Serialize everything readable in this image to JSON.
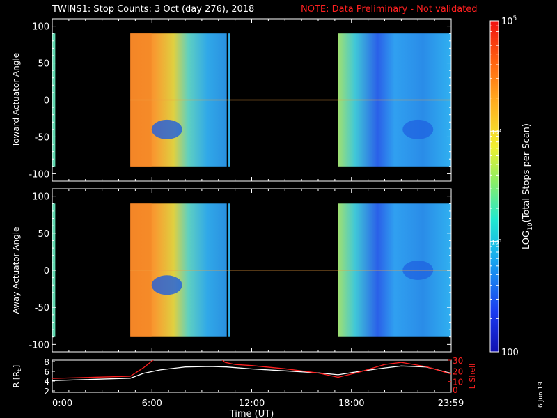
{
  "title": "TWINS1: Stop Counts:  3 Oct (day 276), 2018",
  "note": "NOTE: Data Preliminary - Not validated",
  "date_stamp": "6 Jun 19",
  "colors": {
    "background": "#000000",
    "note": "#ff2020",
    "axes": "#ffffff",
    "r_line": "#ffffff",
    "l_line": "#ff2020"
  },
  "chart_data": [
    {
      "type": "heatmap",
      "ylabel": "Toward Actuator Angle",
      "ylim": [
        -110,
        110
      ],
      "yticks": [
        -100,
        -50,
        0,
        50,
        100
      ],
      "xlim": [
        0,
        24
      ],
      "data_intervals_hours": [
        [
          0.0,
          0.1
        ],
        [
          4.7,
          10.5
        ],
        [
          10.6,
          10.7
        ],
        [
          17.2,
          24.0
        ]
      ],
      "angle_range": [
        -90,
        90
      ]
    },
    {
      "type": "heatmap",
      "ylabel": "Away Actuator Angle",
      "ylim": [
        -110,
        110
      ],
      "yticks": [
        -100,
        -50,
        0,
        50,
        100
      ],
      "xlim": [
        0,
        24
      ],
      "data_intervals_hours": [
        [
          0.0,
          0.1
        ],
        [
          4.7,
          10.5
        ],
        [
          10.6,
          10.7
        ],
        [
          17.2,
          24.0
        ]
      ],
      "angle_range": [
        -90,
        90
      ]
    },
    {
      "type": "line",
      "xlabel": "Time (UT)",
      "xticks": [
        "0:00",
        "6:00",
        "12:00",
        "18:00",
        "23:59"
      ],
      "xtick_hours": [
        0,
        6,
        12,
        18,
        23.98
      ],
      "ylabel_left": "R [R",
      "ylabel_left_sub": "E",
      "ylabel_left_end": "]",
      "ylim_left": [
        2,
        8
      ],
      "yticks_left": [
        "2",
        "4",
        "6",
        "8"
      ],
      "ylabel_right": "L Shell",
      "ylim_right": [
        0,
        30
      ],
      "yticks_right": [
        "10",
        "20",
        "30"
      ],
      "series": [
        {
          "name": "R",
          "axis": "left",
          "x": [
            0,
            4.7,
            5.5,
            6.5,
            8,
            9.5,
            10.5,
            12,
            14,
            16,
            17.2,
            18.5,
            20,
            21,
            22.5,
            24
          ],
          "y": [
            4.1,
            4.6,
            5.6,
            6.3,
            6.9,
            7.0,
            6.9,
            6.5,
            6.1,
            5.7,
            5.3,
            6.0,
            6.7,
            7.1,
            6.9,
            5.6
          ]
        },
        {
          "name": "L Shell",
          "axis": "right",
          "x": [
            0,
            4.7,
            5.5,
            6.3,
            10,
            10.4,
            11,
            12,
            14,
            16,
            17.2,
            18.5,
            20,
            21,
            22.5,
            24
          ],
          "y": [
            13,
            15,
            23,
            33,
            33,
            28,
            26,
            25,
            22,
            18,
            14,
            19,
            26,
            28,
            24,
            17
          ]
        }
      ]
    }
  ],
  "colorbar": {
    "label": "LOG",
    "label_sub": "10",
    "label_rest": "(Total Stops per Scan)",
    "range": [
      100,
      100000
    ],
    "ticks": [
      {
        "value": 100,
        "base": "100",
        "exp": ""
      },
      {
        "value": 1000,
        "base": "10",
        "exp": "3"
      },
      {
        "value": 10000,
        "base": "10",
        "exp": "4"
      },
      {
        "value": 100000,
        "base": "10",
        "exp": "5"
      }
    ]
  }
}
